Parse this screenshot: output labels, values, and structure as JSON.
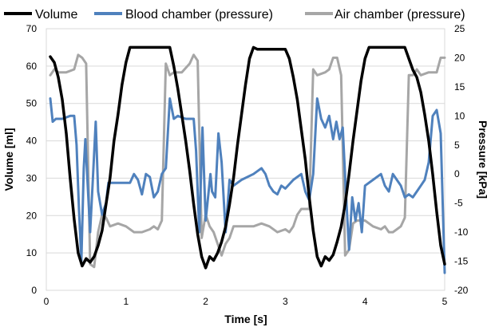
{
  "chart_data": {
    "type": "line",
    "xlabel": "Time [s]",
    "ylabel_left": "Volume [ml]",
    "ylabel_right": "Pressure [kPa]",
    "xlim": [
      0,
      5
    ],
    "ylim_left": [
      0,
      70
    ],
    "ylim_right": [
      -20,
      25
    ],
    "x_ticks": [
      "0",
      "1",
      "2",
      "3",
      "4",
      "5"
    ],
    "y_left_ticks": [
      "0",
      "10",
      "20",
      "30",
      "40",
      "50",
      "60",
      "70"
    ],
    "y_right_ticks": [
      "-20",
      "-15",
      "-10",
      "-5",
      "0",
      "5",
      "10",
      "15",
      "20",
      "25"
    ],
    "grid": "horizontal",
    "legend_position": "top",
    "series": [
      {
        "name": "Volume",
        "axis": "left",
        "color": "#000000",
        "points": [
          [
            0.05,
            62.5
          ],
          [
            0.1,
            61
          ],
          [
            0.15,
            57
          ],
          [
            0.2,
            51
          ],
          [
            0.25,
            42
          ],
          [
            0.3,
            30
          ],
          [
            0.35,
            19
          ],
          [
            0.4,
            10
          ],
          [
            0.45,
            6.5
          ],
          [
            0.5,
            8.5
          ],
          [
            0.55,
            7.5
          ],
          [
            0.6,
            9
          ],
          [
            0.65,
            12
          ],
          [
            0.7,
            16
          ],
          [
            0.75,
            23
          ],
          [
            0.8,
            30
          ],
          [
            0.85,
            40
          ],
          [
            0.9,
            47
          ],
          [
            0.95,
            55
          ],
          [
            1.0,
            61
          ],
          [
            1.05,
            65
          ],
          [
            1.55,
            65
          ],
          [
            1.6,
            60
          ],
          [
            1.65,
            54
          ],
          [
            1.7,
            47
          ],
          [
            1.75,
            40
          ],
          [
            1.8,
            32
          ],
          [
            1.85,
            23
          ],
          [
            1.9,
            15
          ],
          [
            1.95,
            9
          ],
          [
            2.0,
            6
          ],
          [
            2.05,
            9
          ],
          [
            2.1,
            8
          ],
          [
            2.15,
            10
          ],
          [
            2.2,
            13
          ],
          [
            2.25,
            17
          ],
          [
            2.3,
            23
          ],
          [
            2.35,
            30
          ],
          [
            2.4,
            39
          ],
          [
            2.45,
            47
          ],
          [
            2.5,
            55
          ],
          [
            2.55,
            62
          ],
          [
            2.6,
            65
          ],
          [
            2.65,
            64.5
          ],
          [
            3.0,
            64.5
          ],
          [
            3.05,
            62
          ],
          [
            3.1,
            57
          ],
          [
            3.15,
            51
          ],
          [
            3.2,
            43
          ],
          [
            3.25,
            35
          ],
          [
            3.3,
            25
          ],
          [
            3.35,
            16
          ],
          [
            3.4,
            9
          ],
          [
            3.45,
            6.5
          ],
          [
            3.5,
            9
          ],
          [
            3.55,
            8
          ],
          [
            3.6,
            9.5
          ],
          [
            3.65,
            13
          ],
          [
            3.7,
            17
          ],
          [
            3.75,
            23
          ],
          [
            3.8,
            31
          ],
          [
            3.85,
            40
          ],
          [
            3.9,
            48
          ],
          [
            3.95,
            56
          ],
          [
            4.0,
            62
          ],
          [
            4.05,
            65
          ],
          [
            4.5,
            65
          ],
          [
            4.55,
            62
          ],
          [
            4.6,
            59
          ],
          [
            4.65,
            57
          ],
          [
            4.7,
            53
          ],
          [
            4.75,
            47
          ],
          [
            4.8,
            40
          ],
          [
            4.85,
            31
          ],
          [
            4.9,
            21
          ],
          [
            4.95,
            12
          ],
          [
            5.0,
            7
          ]
        ]
      },
      {
        "name": "Blood chamber (pressure)",
        "axis": "right",
        "color": "#4f81bd",
        "points": [
          [
            0.05,
            13
          ],
          [
            0.08,
            9
          ],
          [
            0.12,
            9.5
          ],
          [
            0.2,
            9.5
          ],
          [
            0.3,
            10
          ],
          [
            0.35,
            10
          ],
          [
            0.38,
            5
          ],
          [
            0.41,
            -6
          ],
          [
            0.44,
            -15
          ],
          [
            0.47,
            1
          ],
          [
            0.49,
            6
          ],
          [
            0.52,
            -2
          ],
          [
            0.55,
            -10
          ],
          [
            0.58,
            -2
          ],
          [
            0.62,
            9
          ],
          [
            0.65,
            -3
          ],
          [
            0.7,
            -7
          ],
          [
            0.75,
            -5
          ],
          [
            0.78,
            -1.5
          ],
          [
            0.85,
            -1.5
          ],
          [
            0.9,
            -1.5
          ],
          [
            1.0,
            -1.5
          ],
          [
            1.05,
            -1.5
          ],
          [
            1.1,
            0
          ],
          [
            1.15,
            -1
          ],
          [
            1.2,
            -3.5
          ],
          [
            1.25,
            0
          ],
          [
            1.3,
            -0.5
          ],
          [
            1.35,
            -4
          ],
          [
            1.4,
            -3
          ],
          [
            1.45,
            0
          ],
          [
            1.5,
            1
          ],
          [
            1.55,
            13
          ],
          [
            1.6,
            9.5
          ],
          [
            1.65,
            10
          ],
          [
            1.75,
            9.5
          ],
          [
            1.85,
            9.5
          ],
          [
            1.88,
            4
          ],
          [
            1.92,
            -10
          ],
          [
            1.96,
            8
          ],
          [
            2.0,
            -8
          ],
          [
            2.03,
            -4
          ],
          [
            2.06,
            0
          ],
          [
            2.08,
            -3
          ],
          [
            2.12,
            -4
          ],
          [
            2.16,
            7
          ],
          [
            2.2,
            2
          ],
          [
            2.25,
            -10
          ],
          [
            2.3,
            -1
          ],
          [
            2.35,
            -2
          ],
          [
            2.45,
            -1
          ],
          [
            2.6,
            0
          ],
          [
            2.7,
            1
          ],
          [
            2.75,
            0
          ],
          [
            2.8,
            -2
          ],
          [
            2.85,
            -3
          ],
          [
            2.9,
            -3.5
          ],
          [
            2.95,
            -2
          ],
          [
            3.0,
            -2.5
          ],
          [
            3.1,
            -1
          ],
          [
            3.2,
            0
          ],
          [
            3.25,
            -3
          ],
          [
            3.3,
            -4.5
          ],
          [
            3.35,
            0
          ],
          [
            3.4,
            13
          ],
          [
            3.45,
            9.5
          ],
          [
            3.5,
            8
          ],
          [
            3.55,
            10
          ],
          [
            3.6,
            6
          ],
          [
            3.64,
            9
          ],
          [
            3.68,
            6
          ],
          [
            3.72,
            8
          ],
          [
            3.76,
            -3
          ],
          [
            3.8,
            -13
          ],
          [
            3.84,
            -4
          ],
          [
            3.88,
            -8
          ],
          [
            3.92,
            -5
          ],
          [
            3.96,
            -10
          ],
          [
            4.0,
            -2
          ],
          [
            4.1,
            -1
          ],
          [
            4.2,
            0
          ],
          [
            4.25,
            -2
          ],
          [
            4.3,
            -3
          ],
          [
            4.35,
            0
          ],
          [
            4.4,
            -1
          ],
          [
            4.45,
            -2
          ],
          [
            4.5,
            -4
          ],
          [
            4.55,
            -3.5
          ],
          [
            4.6,
            -4
          ],
          [
            4.65,
            -3
          ],
          [
            4.7,
            -2
          ],
          [
            4.75,
            -1
          ],
          [
            4.8,
            2
          ],
          [
            4.85,
            10
          ],
          [
            4.9,
            11
          ],
          [
            4.95,
            7
          ],
          [
            5.0,
            -17
          ]
        ]
      },
      {
        "name": "Air chamber (pressure)",
        "axis": "right",
        "color": "#a6a6a6",
        "points": [
          [
            0.05,
            17
          ],
          [
            0.1,
            18
          ],
          [
            0.15,
            17.5
          ],
          [
            0.25,
            17.5
          ],
          [
            0.35,
            18
          ],
          [
            0.4,
            20.5
          ],
          [
            0.45,
            20
          ],
          [
            0.5,
            19
          ],
          [
            0.55,
            -15.5
          ],
          [
            0.6,
            -16
          ],
          [
            0.65,
            -10
          ],
          [
            0.7,
            -7
          ],
          [
            0.75,
            -7.5
          ],
          [
            0.8,
            -9
          ],
          [
            0.9,
            -8.5
          ],
          [
            1.0,
            -9
          ],
          [
            1.1,
            -10
          ],
          [
            1.2,
            -10
          ],
          [
            1.3,
            -9.5
          ],
          [
            1.35,
            -9
          ],
          [
            1.4,
            -9.5
          ],
          [
            1.45,
            -8
          ],
          [
            1.5,
            19
          ],
          [
            1.55,
            17
          ],
          [
            1.6,
            17.5
          ],
          [
            1.7,
            17.5
          ],
          [
            1.8,
            19
          ],
          [
            1.85,
            20.5
          ],
          [
            1.9,
            19.5
          ],
          [
            1.95,
            -11
          ],
          [
            2.0,
            -7
          ],
          [
            2.05,
            -9
          ],
          [
            2.1,
            -10
          ],
          [
            2.15,
            -12
          ],
          [
            2.2,
            -14
          ],
          [
            2.25,
            -12
          ],
          [
            2.3,
            -11
          ],
          [
            2.35,
            -9
          ],
          [
            2.5,
            -9
          ],
          [
            2.6,
            -9
          ],
          [
            2.7,
            -8.5
          ],
          [
            2.8,
            -9
          ],
          [
            2.9,
            -10
          ],
          [
            3.0,
            -9.5
          ],
          [
            3.05,
            -10
          ],
          [
            3.1,
            -9
          ],
          [
            3.15,
            -7
          ],
          [
            3.2,
            -6
          ],
          [
            3.3,
            -6
          ],
          [
            3.35,
            18
          ],
          [
            3.4,
            17
          ],
          [
            3.5,
            17.5
          ],
          [
            3.55,
            18
          ],
          [
            3.6,
            20
          ],
          [
            3.65,
            20
          ],
          [
            3.7,
            17
          ],
          [
            3.75,
            -14
          ],
          [
            3.8,
            -13
          ],
          [
            3.85,
            -8.5
          ],
          [
            3.9,
            -8
          ],
          [
            4.0,
            -8
          ],
          [
            4.1,
            -9
          ],
          [
            4.2,
            -9.5
          ],
          [
            4.25,
            -9
          ],
          [
            4.3,
            -10
          ],
          [
            4.35,
            -10
          ],
          [
            4.4,
            -9.5
          ],
          [
            4.45,
            -9
          ],
          [
            4.5,
            -7.5
          ],
          [
            4.55,
            17
          ],
          [
            4.6,
            17
          ],
          [
            4.65,
            18
          ],
          [
            4.7,
            17
          ],
          [
            4.8,
            17.5
          ],
          [
            4.9,
            17.5
          ],
          [
            4.95,
            20
          ],
          [
            5.0,
            20
          ]
        ]
      }
    ]
  }
}
